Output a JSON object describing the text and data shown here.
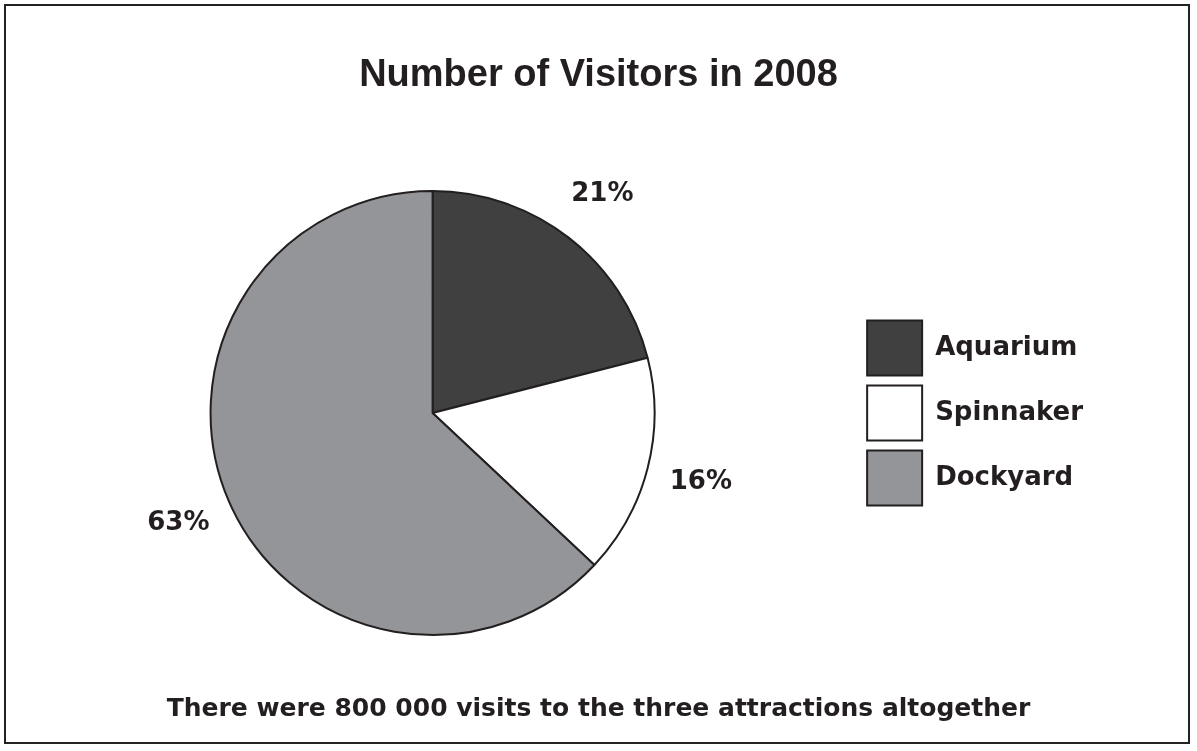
{
  "chart_data": {
    "type": "pie",
    "title": "Number of Visitors in 2008",
    "categories": [
      "Aquarium",
      "Spinnaker",
      "Dockyard"
    ],
    "values": [
      21,
      16,
      63
    ],
    "value_labels": [
      "21%",
      "16%",
      "63%"
    ],
    "colors": [
      "#404040",
      "#ffffff",
      "#939598"
    ],
    "legend": "right",
    "annotations": [
      "There were 800 000 visits to the three attractions altogether"
    ]
  }
}
